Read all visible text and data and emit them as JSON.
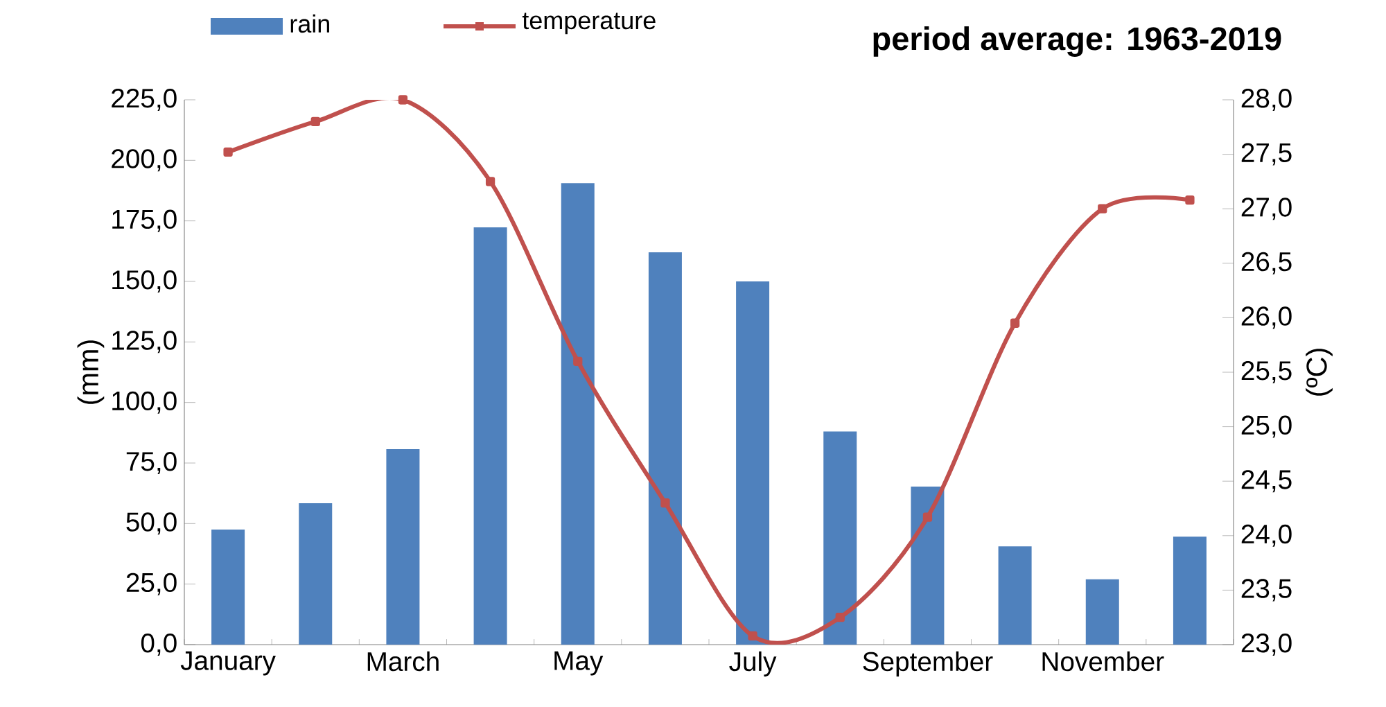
{
  "chart_data": {
    "type": "bar",
    "title": "period average: 1963-2019",
    "ylabel": "(mm)",
    "y2label": "(ºC)",
    "categories": [
      "January",
      null,
      "March",
      null,
      "May",
      null,
      "July",
      null,
      "September",
      null,
      "November",
      null
    ],
    "series": [
      {
        "name": "rain",
        "color": "#4f81bd",
        "values": [
          47.5,
          58.4,
          80.7,
          172.3,
          190.6,
          162,
          150,
          88,
          65.3,
          40.6,
          27,
          44.6
        ]
      },
      {
        "name": "temperature",
        "type": "line",
        "axis": "y2",
        "color": "#c0504d",
        "values": [
          27.52,
          27.8,
          28.0,
          27.25,
          25.6,
          24.3,
          23.08,
          23.25,
          24.17,
          25.95,
          27.0,
          27.08
        ]
      }
    ],
    "ylim": [
      0,
      225
    ],
    "yticks": [
      {
        "value": 0,
        "label": "0,0"
      },
      {
        "value": 25,
        "label": "25,0"
      },
      {
        "value": 50,
        "label": "50,0"
      },
      {
        "value": 75,
        "label": "75,0"
      },
      {
        "value": 100,
        "label": "100,0"
      },
      {
        "value": 125,
        "label": "125,0"
      },
      {
        "value": 150,
        "label": "150,0"
      },
      {
        "value": 175,
        "label": "175,0"
      },
      {
        "value": 200,
        "label": "200,0"
      },
      {
        "value": 225,
        "label": "225,0"
      }
    ],
    "y2lim": [
      23,
      28
    ],
    "y2ticks": [
      {
        "value": 23,
        "label": "23,0"
      },
      {
        "value": 23.5,
        "label": "23,5"
      },
      {
        "value": 24,
        "label": "24,0"
      },
      {
        "value": 24.5,
        "label": "24,5"
      },
      {
        "value": 25,
        "label": "25,0"
      },
      {
        "value": 25.5,
        "label": "25,5"
      },
      {
        "value": 26,
        "label": "26,0"
      },
      {
        "value": 26.5,
        "label": "26,5"
      },
      {
        "value": 27,
        "label": "27,0"
      },
      {
        "value": 27.5,
        "label": "27,5"
      },
      {
        "value": 28,
        "label": "28,0"
      }
    ],
    "legend": "top left",
    "marker": "square"
  }
}
